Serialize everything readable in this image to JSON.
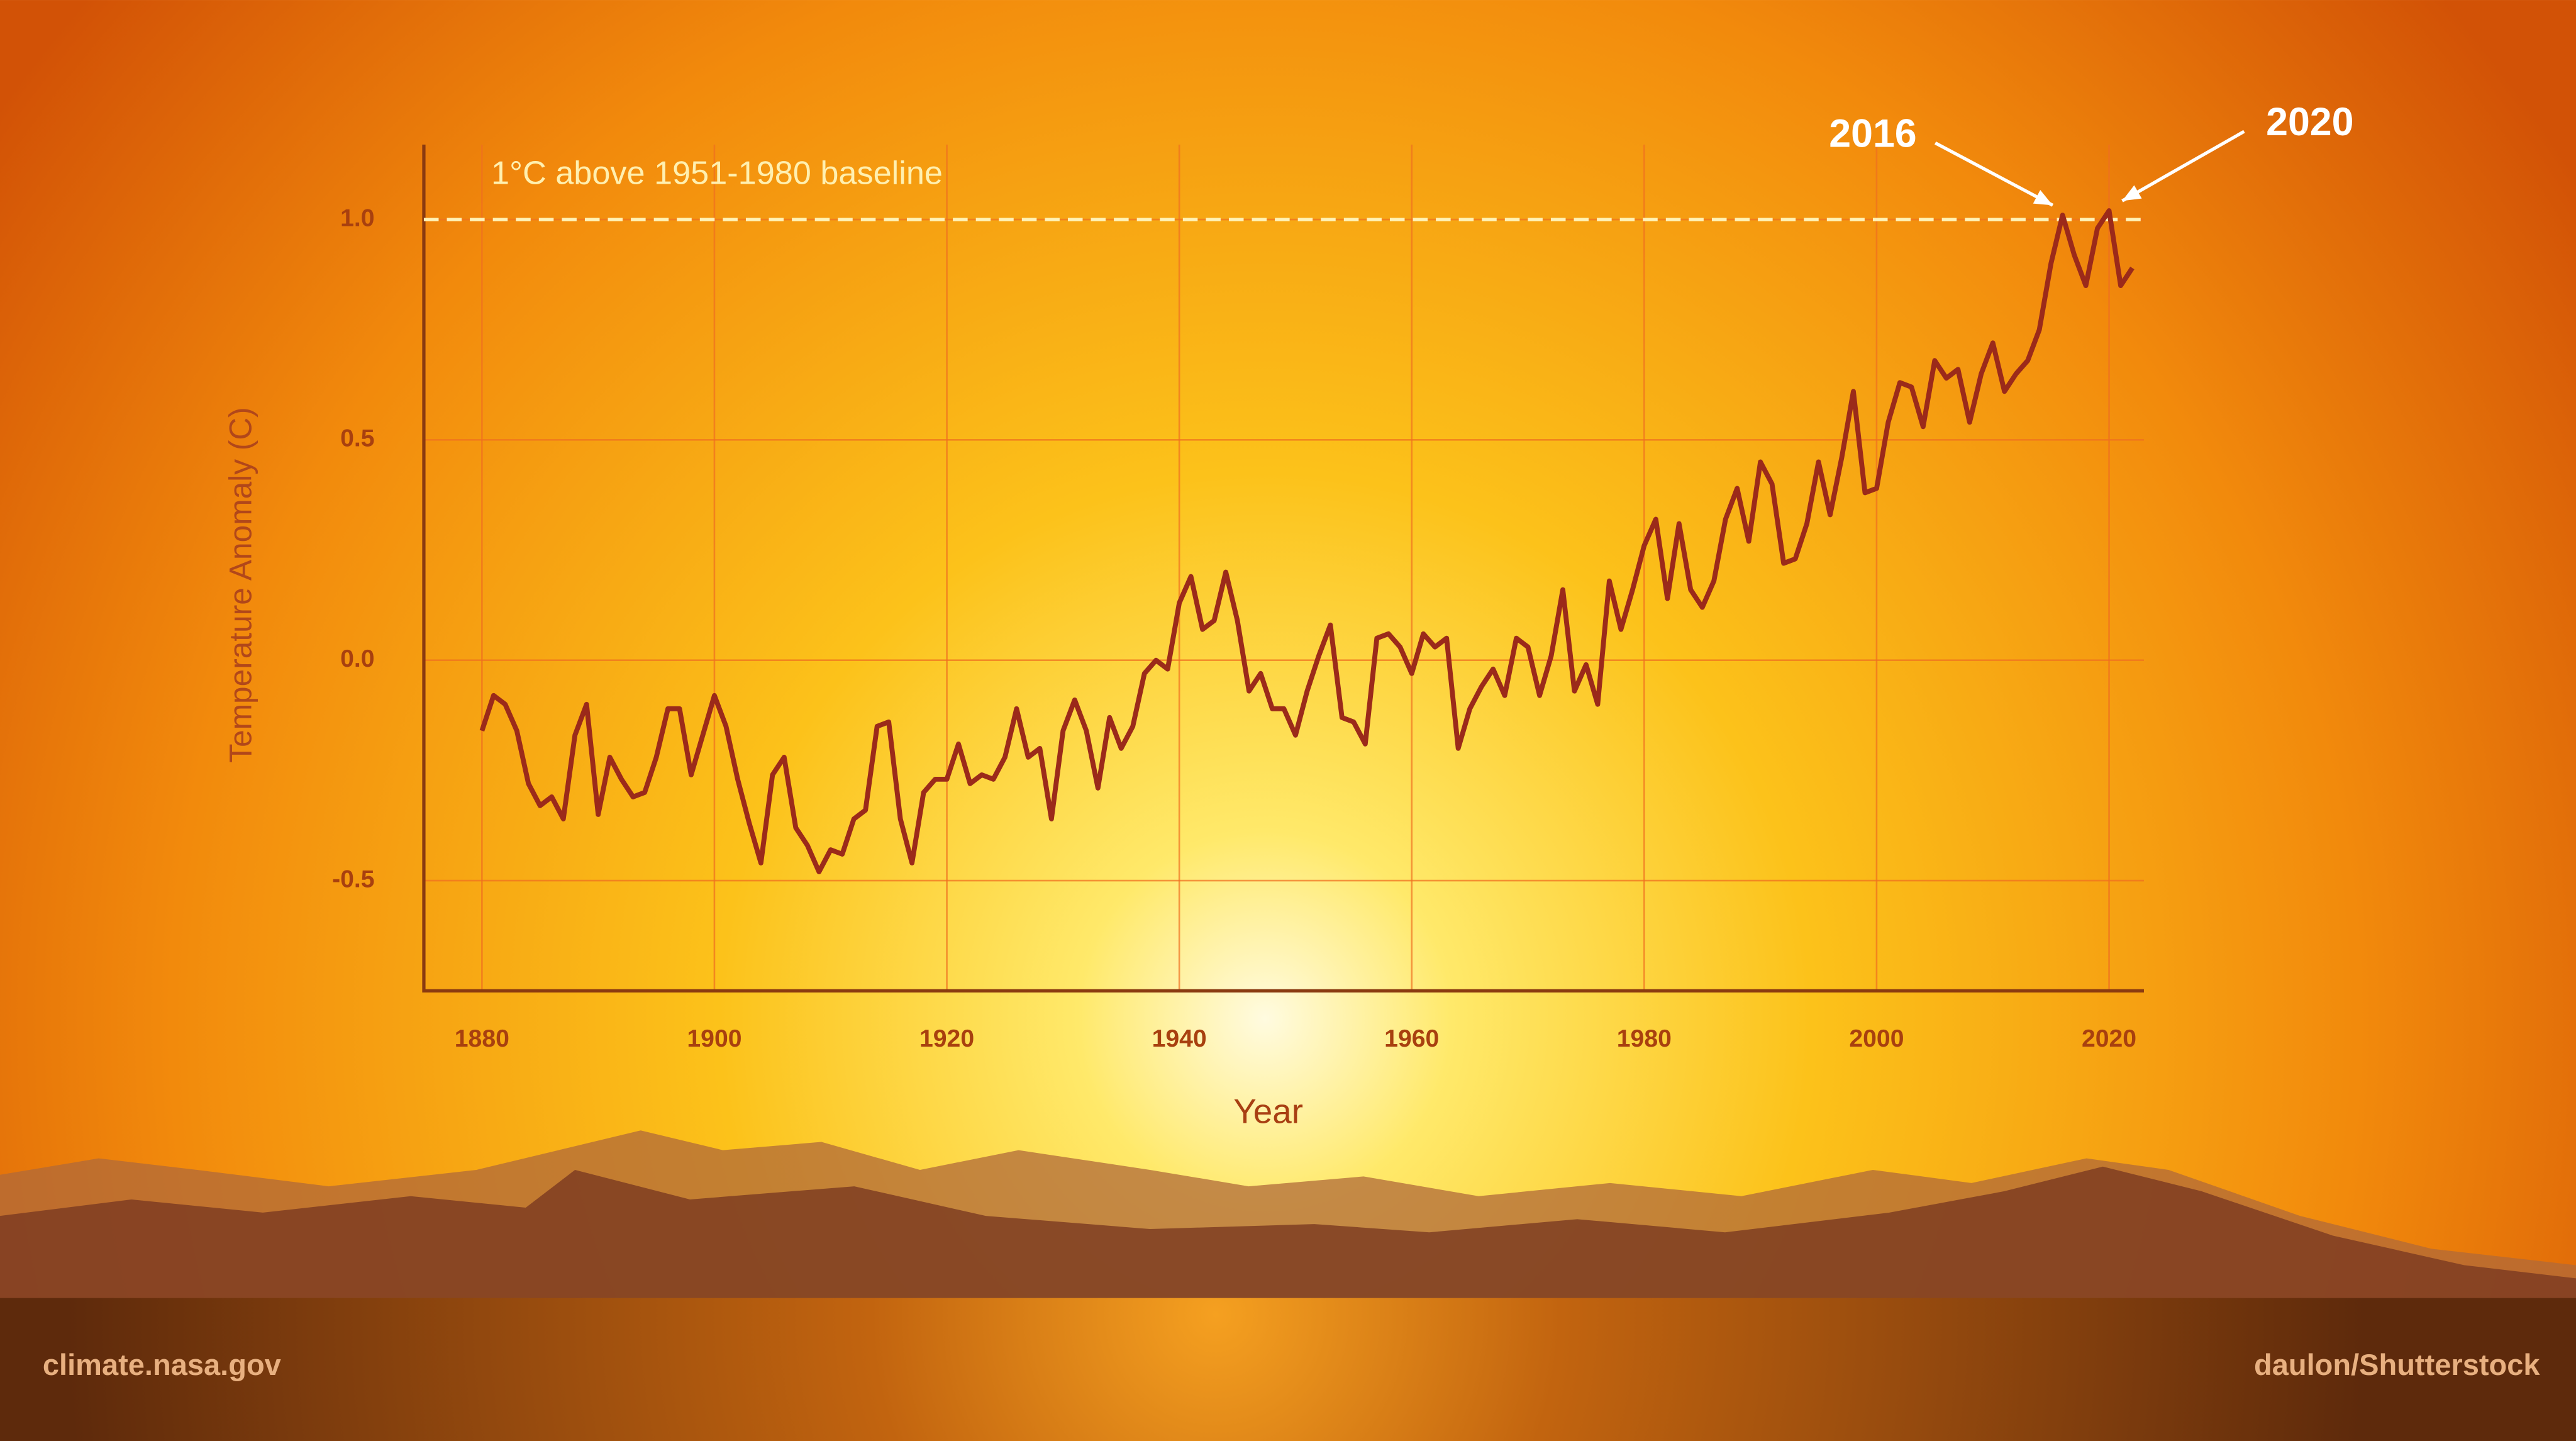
{
  "chart_data": {
    "type": "line",
    "ylabel": "Temperature Anomaly (C)",
    "xlabel": "Year",
    "x": [
      1880,
      1881,
      1882,
      1883,
      1884,
      1885,
      1886,
      1887,
      1888,
      1889,
      1890,
      1891,
      1892,
      1893,
      1894,
      1895,
      1896,
      1897,
      1898,
      1899,
      1900,
      1901,
      1902,
      1903,
      1904,
      1905,
      1906,
      1907,
      1908,
      1909,
      1910,
      1911,
      1912,
      1913,
      1914,
      1915,
      1916,
      1917,
      1918,
      1919,
      1920,
      1921,
      1922,
      1923,
      1924,
      1925,
      1926,
      1927,
      1928,
      1929,
      1930,
      1931,
      1932,
      1933,
      1934,
      1935,
      1936,
      1937,
      1938,
      1939,
      1940,
      1941,
      1942,
      1943,
      1944,
      1945,
      1946,
      1947,
      1948,
      1949,
      1950,
      1951,
      1952,
      1953,
      1954,
      1955,
      1956,
      1957,
      1958,
      1959,
      1960,
      1961,
      1962,
      1963,
      1964,
      1965,
      1966,
      1967,
      1968,
      1969,
      1970,
      1971,
      1972,
      1973,
      1974,
      1975,
      1976,
      1977,
      1978,
      1979,
      1980,
      1981,
      1982,
      1983,
      1984,
      1985,
      1986,
      1987,
      1988,
      1989,
      1990,
      1991,
      1992,
      1993,
      1994,
      1995,
      1996,
      1997,
      1998,
      1999,
      2000,
      2001,
      2002,
      2003,
      2004,
      2005,
      2006,
      2007,
      2008,
      2009,
      2010,
      2011,
      2012,
      2013,
      2014,
      2015,
      2016,
      2017,
      2018,
      2019,
      2020,
      2021,
      2022
    ],
    "values": [
      -0.16,
      -0.08,
      -0.1,
      -0.16,
      -0.28,
      -0.33,
      -0.31,
      -0.36,
      -0.17,
      -0.1,
      -0.35,
      -0.22,
      -0.27,
      -0.31,
      -0.3,
      -0.22,
      -0.11,
      -0.11,
      -0.26,
      -0.17,
      -0.08,
      -0.15,
      -0.27,
      -0.37,
      -0.46,
      -0.26,
      -0.22,
      -0.38,
      -0.42,
      -0.48,
      -0.43,
      -0.44,
      -0.36,
      -0.34,
      -0.15,
      -0.14,
      -0.36,
      -0.46,
      -0.3,
      -0.27,
      -0.27,
      -0.19,
      -0.28,
      -0.26,
      -0.27,
      -0.22,
      -0.11,
      -0.22,
      -0.2,
      -0.36,
      -0.16,
      -0.09,
      -0.16,
      -0.29,
      -0.13,
      -0.2,
      -0.15,
      -0.03,
      0.0,
      -0.02,
      0.13,
      0.19,
      0.07,
      0.09,
      0.2,
      0.09,
      -0.07,
      -0.03,
      -0.11,
      -0.11,
      -0.17,
      -0.07,
      0.01,
      0.08,
      -0.13,
      -0.14,
      -0.19,
      0.05,
      0.06,
      0.03,
      -0.03,
      0.06,
      0.03,
      0.05,
      -0.2,
      -0.11,
      -0.06,
      -0.02,
      -0.08,
      0.05,
      0.03,
      -0.08,
      0.01,
      0.16,
      -0.07,
      -0.01,
      -0.1,
      0.18,
      0.07,
      0.16,
      0.26,
      0.32,
      0.14,
      0.31,
      0.16,
      0.12,
      0.18,
      0.32,
      0.39,
      0.27,
      0.45,
      0.4,
      0.22,
      0.23,
      0.31,
      0.45,
      0.33,
      0.46,
      0.61,
      0.38,
      0.39,
      0.54,
      0.63,
      0.62,
      0.53,
      0.68,
      0.64,
      0.66,
      0.54,
      0.65,
      0.72,
      0.61,
      0.65,
      0.68,
      0.75,
      0.9,
      1.01,
      0.92,
      0.85,
      0.98,
      1.02,
      0.85,
      0.89
    ],
    "color": "#9b2a1a",
    "xlim": [
      1875,
      2023
    ],
    "ylim": [
      -0.75,
      1.17
    ],
    "xticks": [
      1880,
      1900,
      1920,
      1940,
      1960,
      1980,
      2000,
      2020
    ],
    "yticks": [
      -0.5,
      {
        "value": 0,
        "label": "0.0"
      },
      0.5,
      {
        "value": 1,
        "label": "1.0"
      }
    ],
    "grid": true,
    "reference_line": {
      "value": 1,
      "label": "1°C above 1951-1980 baseline"
    },
    "annotations": [
      {
        "text": "2016",
        "x": 2016
      },
      {
        "text": "2020",
        "x": 2020
      }
    ],
    "credits": [
      "climate.nasa.gov",
      "daulon/Shutterstock"
    ]
  }
}
